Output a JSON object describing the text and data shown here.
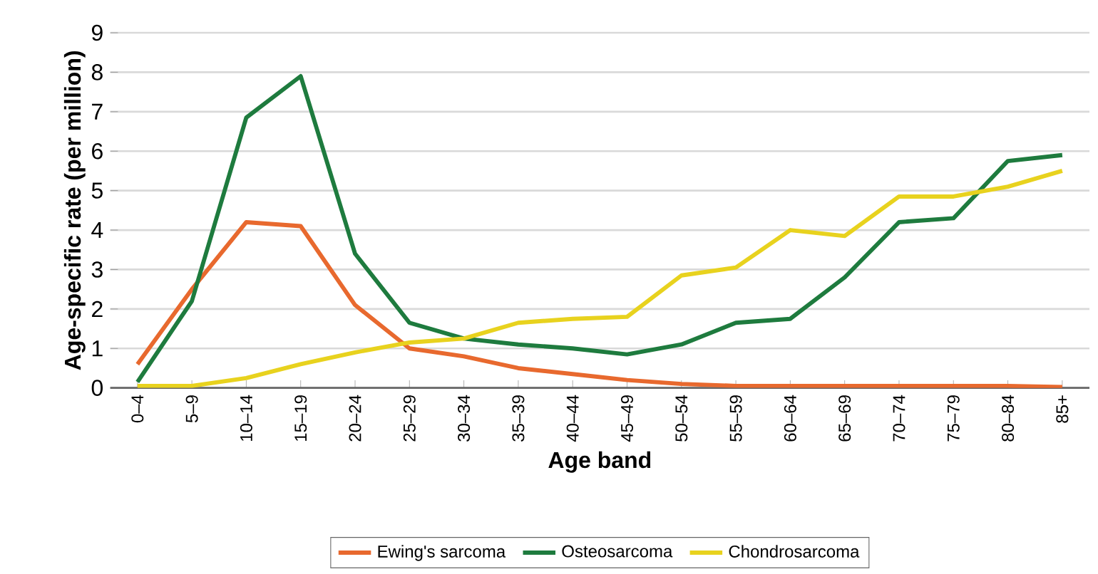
{
  "chart_data": {
    "type": "line",
    "xlabel": "Age band",
    "ylabel": "Age-specific rate (per million)",
    "categories": [
      "0–4",
      "5–9",
      "10–14",
      "15–19",
      "20–24",
      "25–29",
      "30–34",
      "35–39",
      "40–44",
      "45–49",
      "50–54",
      "55–59",
      "60–64",
      "65–69",
      "70–74",
      "75–79",
      "80–84",
      "85+"
    ],
    "series": [
      {
        "name": "Ewing's sarcoma",
        "color": "#e8692e",
        "values": [
          0.6,
          2.5,
          4.2,
          4.1,
          2.1,
          1.0,
          0.8,
          0.5,
          0.35,
          0.2,
          0.1,
          0.05,
          0.05,
          0.05,
          0.05,
          0.05,
          0.05,
          0.02
        ]
      },
      {
        "name": "Osteosarcoma",
        "color": "#1e7b3e",
        "values": [
          0.15,
          2.2,
          6.85,
          7.9,
          3.4,
          1.65,
          1.25,
          1.1,
          1.0,
          0.85,
          1.1,
          1.65,
          1.75,
          2.8,
          4.2,
          4.3,
          5.75,
          5.9
        ]
      },
      {
        "name": "Chondrosarcoma",
        "color": "#e8d21e",
        "values": [
          0.05,
          0.05,
          0.25,
          0.6,
          0.9,
          1.15,
          1.25,
          1.65,
          1.75,
          1.8,
          2.85,
          3.05,
          4.0,
          3.85,
          4.85,
          4.85,
          5.1,
          5.5
        ]
      }
    ],
    "ylim": [
      0,
      9
    ],
    "yticks": [
      0,
      1,
      2,
      3,
      4,
      5,
      6,
      7,
      8,
      9
    ],
    "grid": "y",
    "legend": "bottom",
    "marker": "none",
    "line_style": "solid"
  }
}
